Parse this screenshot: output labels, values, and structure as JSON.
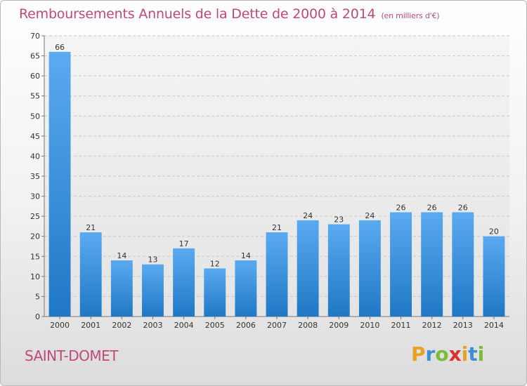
{
  "title": "Remboursements Annuels de la Dette de 2000 à 2014",
  "subtitle": "(en milliers d'€)",
  "commune": "SAINT-DOMET",
  "brand": {
    "letters": [
      "P",
      "r",
      "o",
      "x",
      "i",
      "t",
      "i"
    ],
    "colors": [
      "#e9a21f",
      "#3e8fd6",
      "#7cbb3a",
      "#d8332d",
      "#e9a21f",
      "#3e8fd6",
      "#7cbb3a"
    ]
  },
  "colors": {
    "bar_top": "#5aaaf0",
    "bar_bottom": "#1f78c4",
    "text_accent": "#c0487a"
  },
  "chart_data": {
    "type": "bar",
    "categories": [
      "2000",
      "2001",
      "2002",
      "2003",
      "2004",
      "2005",
      "2006",
      "2007",
      "2008",
      "2009",
      "2010",
      "2011",
      "2012",
      "2013",
      "2014"
    ],
    "values": [
      66,
      21,
      14,
      13,
      17,
      12,
      14,
      21,
      24,
      23,
      24,
      26,
      26,
      26,
      20
    ],
    "ylim": [
      0,
      70
    ],
    "yticks": [
      0,
      5,
      10,
      15,
      20,
      25,
      30,
      35,
      40,
      45,
      50,
      55,
      60,
      65,
      70
    ],
    "grid": true,
    "data_labels": true
  }
}
